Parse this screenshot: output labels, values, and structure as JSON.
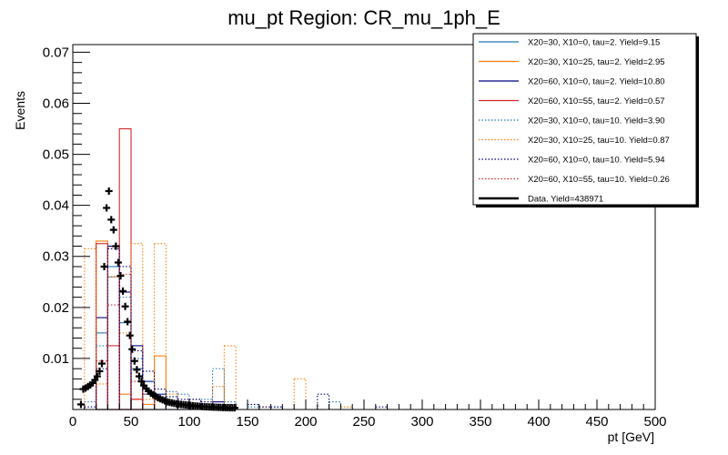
{
  "chart_data": {
    "type": "bar",
    "title": "mu_pt Region: CR_mu_1ph_E",
    "xlabel": "pt [GeV]",
    "ylabel": "Events",
    "xlim": [
      0,
      500
    ],
    "ylim": [
      0,
      0.0715
    ],
    "x_ticks": [
      0,
      50,
      100,
      150,
      200,
      250,
      300,
      350,
      400,
      450,
      500
    ],
    "x_tick_labels": [
      "0",
      "50",
      "100",
      "150",
      "200",
      "250",
      "300",
      "350",
      "400",
      "450",
      "500"
    ],
    "y_ticks": [
      0.01,
      0.02,
      0.03,
      0.04,
      0.05,
      0.06,
      0.07
    ],
    "y_tick_labels": [
      "0.01",
      "0.02",
      "0.03",
      "0.04",
      "0.05",
      "0.06",
      "0.07"
    ],
    "bin_width": 10,
    "grid": false,
    "legend_position": "top-right",
    "series": [
      {
        "name": "X20=30, X10=0, tau=2. Yield=9.15",
        "color": "#1f77b4",
        "style": "solid",
        "values": [
          0,
          0,
          0.015,
          0.028,
          0.017,
          0.008,
          0.003,
          0.002,
          0.001,
          0.0005,
          0,
          0,
          0,
          0,
          0,
          0,
          0,
          0,
          0,
          0,
          0,
          0,
          0,
          0,
          0,
          0,
          0,
          0,
          0,
          0,
          0,
          0,
          0,
          0,
          0,
          0,
          0,
          0,
          0,
          0,
          0,
          0,
          0,
          0,
          0,
          0,
          0,
          0,
          0,
          0
        ]
      },
      {
        "name": "X20=30, X10=25, tau=2. Yield=2.95",
        "color": "#ff7f0e",
        "style": "solid",
        "values": [
          0,
          0,
          0.033,
          0.026,
          0.003,
          0.002,
          0.001,
          0.0105,
          0,
          0,
          0,
          0,
          0,
          0,
          0,
          0,
          0,
          0,
          0,
          0,
          0,
          0,
          0,
          0,
          0,
          0,
          0,
          0,
          0,
          0,
          0,
          0,
          0,
          0,
          0,
          0,
          0,
          0,
          0,
          0,
          0,
          0,
          0,
          0,
          0,
          0,
          0,
          0,
          0,
          0
        ]
      },
      {
        "name": "X20=60, X10=0, tau=2. Yield=10.80",
        "color": "#000080",
        "style": "solid",
        "values": [
          0,
          0,
          0.018,
          0.032,
          0.023,
          0.0125,
          0.0055,
          0.003,
          0.0015,
          0.001,
          0.0005,
          0.0005,
          0.0015,
          0,
          0,
          0,
          0,
          0,
          0,
          0,
          0,
          0,
          0,
          0,
          0,
          0,
          0,
          0,
          0,
          0,
          0,
          0,
          0,
          0,
          0,
          0,
          0,
          0,
          0,
          0,
          0,
          0,
          0,
          0,
          0,
          0,
          0,
          0,
          0,
          0
        ]
      },
      {
        "name": "X20=60, X10=55, tau=2. Yield=0.57",
        "color": "#d62728",
        "style": "solid",
        "values": [
          0,
          0,
          0.0325,
          0.0125,
          0.055,
          0.002,
          0,
          0,
          0,
          0,
          0,
          0,
          0,
          0,
          0,
          0,
          0,
          0,
          0,
          0,
          0,
          0,
          0,
          0,
          0,
          0,
          0,
          0,
          0,
          0,
          0,
          0,
          0,
          0,
          0,
          0,
          0,
          0,
          0,
          0,
          0,
          0,
          0,
          0,
          0,
          0,
          0,
          0,
          0,
          0
        ]
      },
      {
        "name": "X20=30, X10=0, tau=10. Yield=3.90",
        "color": "#1f77b4",
        "style": "dotted",
        "values": [
          0,
          0.0015,
          0.0125,
          0.026,
          0.022,
          0.01,
          0.0055,
          0.003,
          0.0035,
          0.003,
          0.002,
          0.002,
          0.008,
          0.0015,
          0,
          0.0005,
          0,
          0.0005,
          0,
          0,
          0,
          0,
          0.0015,
          0,
          0,
          0,
          0,
          0,
          0,
          0,
          0,
          0,
          0,
          0,
          0,
          0,
          0,
          0,
          0,
          0,
          0,
          0,
          0,
          0,
          0,
          0,
          0,
          0,
          0,
          0
        ]
      },
      {
        "name": "X20=30, X10=25, tau=10. Yield=0.87",
        "color": "#ff7f0e",
        "style": "dotted",
        "values": [
          0,
          0.0315,
          0.005,
          0.0315,
          0.015,
          0.0325,
          0.002,
          0.0325,
          0.003,
          0.0005,
          0.002,
          0.0005,
          0.0045,
          0.0125,
          0,
          0,
          0.0005,
          0,
          0,
          0.006,
          0,
          0,
          0,
          0.0005,
          0,
          0,
          0,
          0,
          0,
          0,
          0,
          0,
          0,
          0,
          0,
          0,
          0,
          0,
          0,
          0,
          0,
          0,
          0,
          0,
          0,
          0,
          0,
          0,
          0,
          0
        ]
      },
      {
        "name": "X20=60, X10=0, tau=10. Yield=5.94",
        "color": "#000080",
        "style": "dotted",
        "values": [
          0,
          0.0005,
          0.008,
          0.0315,
          0.028,
          0.0115,
          0.0075,
          0.004,
          0.0025,
          0.002,
          0.002,
          0.0015,
          0.001,
          0.001,
          0,
          0.001,
          0.0005,
          0.0005,
          0,
          0,
          0,
          0.003,
          0,
          0,
          0,
          0,
          0.0005,
          0,
          0,
          0,
          0,
          0,
          0,
          0,
          0,
          0,
          0,
          0,
          0,
          0,
          0,
          0,
          0,
          0,
          0,
          0,
          0,
          0,
          0,
          0
        ]
      },
      {
        "name": "X20=60, X10=55, tau=10. Yield=0.26",
        "color": "#d62728",
        "style": "dotted",
        "values": [
          0,
          0,
          0.0095,
          0.0205,
          0.0265,
          0.0055,
          0.003,
          0,
          0,
          0,
          0,
          0,
          0,
          0,
          0,
          0,
          0,
          0,
          0,
          0,
          0,
          0,
          0,
          0,
          0,
          0,
          0,
          0,
          0,
          0,
          0,
          0,
          0,
          0,
          0,
          0,
          0,
          0,
          0,
          0,
          0,
          0,
          0,
          0,
          0,
          0,
          0,
          0,
          0,
          0
        ]
      },
      {
        "name": "Data. Yield=438971",
        "color": "#000000",
        "style": "markers",
        "points_x": [
          7,
          9,
          11,
          13,
          15,
          17,
          19,
          21,
          23,
          25,
          27,
          29,
          31,
          33,
          35,
          37,
          39,
          41,
          43,
          45,
          47,
          49,
          51,
          53,
          55,
          57,
          59,
          61,
          63,
          65,
          67,
          69,
          71,
          73,
          75,
          77,
          79,
          81,
          83,
          85,
          87,
          89,
          91,
          93,
          95,
          97,
          99,
          101,
          103,
          105,
          107,
          109,
          111,
          113,
          115,
          117,
          119,
          121,
          123,
          125,
          127,
          129,
          131,
          133,
          135,
          137,
          139
        ],
        "points_y": [
          0.001,
          0.004,
          0.0042,
          0.0045,
          0.0048,
          0.0052,
          0.0058,
          0.0065,
          0.0075,
          0.009,
          0.028,
          0.0395,
          0.0428,
          0.0372,
          0.0352,
          0.032,
          0.0288,
          0.0262,
          0.0232,
          0.0202,
          0.0172,
          0.0145,
          0.0118,
          0.0095,
          0.0078,
          0.0065,
          0.0055,
          0.0047,
          0.0041,
          0.0036,
          0.0032,
          0.0029,
          0.0026,
          0.0023,
          0.0021,
          0.0019,
          0.0017,
          0.0015,
          0.0014,
          0.0013,
          0.0012,
          0.0011,
          0.00105,
          0.001,
          0.00095,
          0.0009,
          0.00085,
          0.0008,
          0.00075,
          0.0007,
          0.00066,
          0.00062,
          0.00058,
          0.00055,
          0.00052,
          0.0005,
          0.00048,
          0.00046,
          0.00044,
          0.00042,
          0.0004,
          0.00038,
          0.00036,
          0.00035,
          0.00034,
          0.00033,
          0.00032
        ]
      }
    ]
  }
}
